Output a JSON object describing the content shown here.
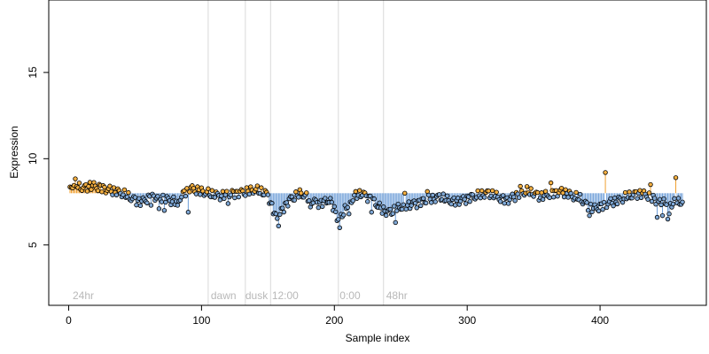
{
  "chart_data": {
    "type": "scatter",
    "xlabel": "Sample index",
    "ylabel": "Expression",
    "xlim": [
      -15,
      480
    ],
    "ylim": [
      1.5,
      19.2
    ],
    "x_ticks": [
      0,
      100,
      200,
      300,
      400
    ],
    "y_ticks": [
      5,
      10,
      15
    ],
    "baseline": 8.0,
    "colors": {
      "above": "#f5b041",
      "below": "#7fa8d6",
      "stem_above": "#f0a030",
      "stem_below": "#6f9fd8",
      "period_line": "#d9d9d9"
    },
    "period_lines": [
      105,
      133,
      152,
      203,
      237
    ],
    "period_labels": [
      {
        "x": 3,
        "text": "24hr"
      },
      {
        "x": 107,
        "text": "dawn"
      },
      {
        "x": 133,
        "text": "dusk"
      },
      {
        "x": 153,
        "text": "12:00"
      },
      {
        "x": 204,
        "text": "0:00"
      },
      {
        "x": 239,
        "text": "48hr"
      }
    ],
    "anchors": [
      [
        1,
        8.25
      ],
      [
        3,
        8.5
      ],
      [
        5,
        8.55
      ],
      [
        8,
        8.35
      ],
      [
        12,
        8.3
      ],
      [
        16,
        8.45
      ],
      [
        20,
        8.4
      ],
      [
        25,
        8.3
      ],
      [
        30,
        8.2
      ],
      [
        35,
        8.1
      ],
      [
        40,
        8.0
      ],
      [
        45,
        7.8
      ],
      [
        50,
        7.6
      ],
      [
        55,
        7.5
      ],
      [
        60,
        7.7
      ],
      [
        65,
        7.8
      ],
      [
        70,
        7.7
      ],
      [
        75,
        7.6
      ],
      [
        80,
        7.5
      ],
      [
        85,
        7.8
      ],
      [
        88,
        8.1
      ],
      [
        90,
        8.35
      ],
      [
        95,
        8.2
      ],
      [
        100,
        8.1
      ],
      [
        105,
        8.0
      ],
      [
        110,
        7.9
      ],
      [
        115,
        7.85
      ],
      [
        120,
        7.9
      ],
      [
        125,
        8.0
      ],
      [
        130,
        8.05
      ],
      [
        135,
        8.1
      ],
      [
        140,
        8.2
      ],
      [
        145,
        8.1
      ],
      [
        150,
        7.9
      ],
      [
        153,
        7.2
      ],
      [
        156,
        6.6
      ],
      [
        160,
        6.9
      ],
      [
        163,
        7.3
      ],
      [
        166,
        7.6
      ],
      [
        170,
        7.8
      ],
      [
        175,
        8.0
      ],
      [
        180,
        7.7
      ],
      [
        185,
        7.5
      ],
      [
        190,
        7.4
      ],
      [
        195,
        7.6
      ],
      [
        198,
        7.4
      ],
      [
        201,
        6.9
      ],
      [
        203,
        6.4
      ],
      [
        206,
        6.8
      ],
      [
        210,
        7.3
      ],
      [
        215,
        7.8
      ],
      [
        220,
        8.0
      ],
      [
        225,
        7.8
      ],
      [
        230,
        7.5
      ],
      [
        235,
        7.1
      ],
      [
        240,
        6.9
      ],
      [
        245,
        7.0
      ],
      [
        250,
        7.2
      ],
      [
        255,
        7.3
      ],
      [
        260,
        7.4
      ],
      [
        265,
        7.5
      ],
      [
        270,
        7.6
      ],
      [
        275,
        7.7
      ],
      [
        280,
        7.8
      ],
      [
        285,
        7.6
      ],
      [
        290,
        7.5
      ],
      [
        295,
        7.6
      ],
      [
        300,
        7.7
      ],
      [
        305,
        7.8
      ],
      [
        310,
        7.9
      ],
      [
        315,
        8.0
      ],
      [
        320,
        7.9
      ],
      [
        325,
        7.7
      ],
      [
        330,
        7.6
      ],
      [
        335,
        7.8
      ],
      [
        340,
        8.0
      ],
      [
        345,
        8.1
      ],
      [
        350,
        8.0
      ],
      [
        355,
        7.8
      ],
      [
        360,
        7.9
      ],
      [
        365,
        8.0
      ],
      [
        370,
        8.1
      ],
      [
        375,
        8.0
      ],
      [
        380,
        7.8
      ],
      [
        385,
        7.7
      ],
      [
        390,
        7.3
      ],
      [
        395,
        7.1
      ],
      [
        400,
        7.2
      ],
      [
        405,
        7.4
      ],
      [
        410,
        7.5
      ],
      [
        415,
        7.6
      ],
      [
        420,
        7.8
      ],
      [
        425,
        7.9
      ],
      [
        430,
        8.0
      ],
      [
        435,
        7.9
      ],
      [
        440,
        7.7
      ],
      [
        445,
        7.4
      ],
      [
        450,
        7.5
      ],
      [
        455,
        7.4
      ],
      [
        460,
        7.5
      ],
      [
        462,
        7.5
      ]
    ],
    "spikes": [
      [
        90,
        6.9
      ],
      [
        404,
        9.2
      ],
      [
        457,
        8.9
      ],
      [
        438,
        8.5
      ],
      [
        363,
        8.6
      ],
      [
        253,
        8.0
      ],
      [
        270,
        8.1
      ],
      [
        340,
        8.4
      ],
      [
        158,
        6.1
      ],
      [
        204,
        6.0
      ],
      [
        246,
        6.3
      ],
      [
        392,
        6.7
      ],
      [
        443,
        6.6
      ],
      [
        452,
        6.8
      ],
      [
        447,
        6.7
      ],
      [
        451,
        6.5
      ],
      [
        62,
        7.3
      ],
      [
        68,
        7.1
      ],
      [
        72,
        7.0
      ],
      [
        82,
        7.3
      ],
      [
        120,
        7.4
      ],
      [
        182,
        7.2
      ],
      [
        199,
        7.0
      ],
      [
        211,
        6.8
      ],
      [
        228,
        6.9
      ]
    ],
    "point_count": 462
  }
}
